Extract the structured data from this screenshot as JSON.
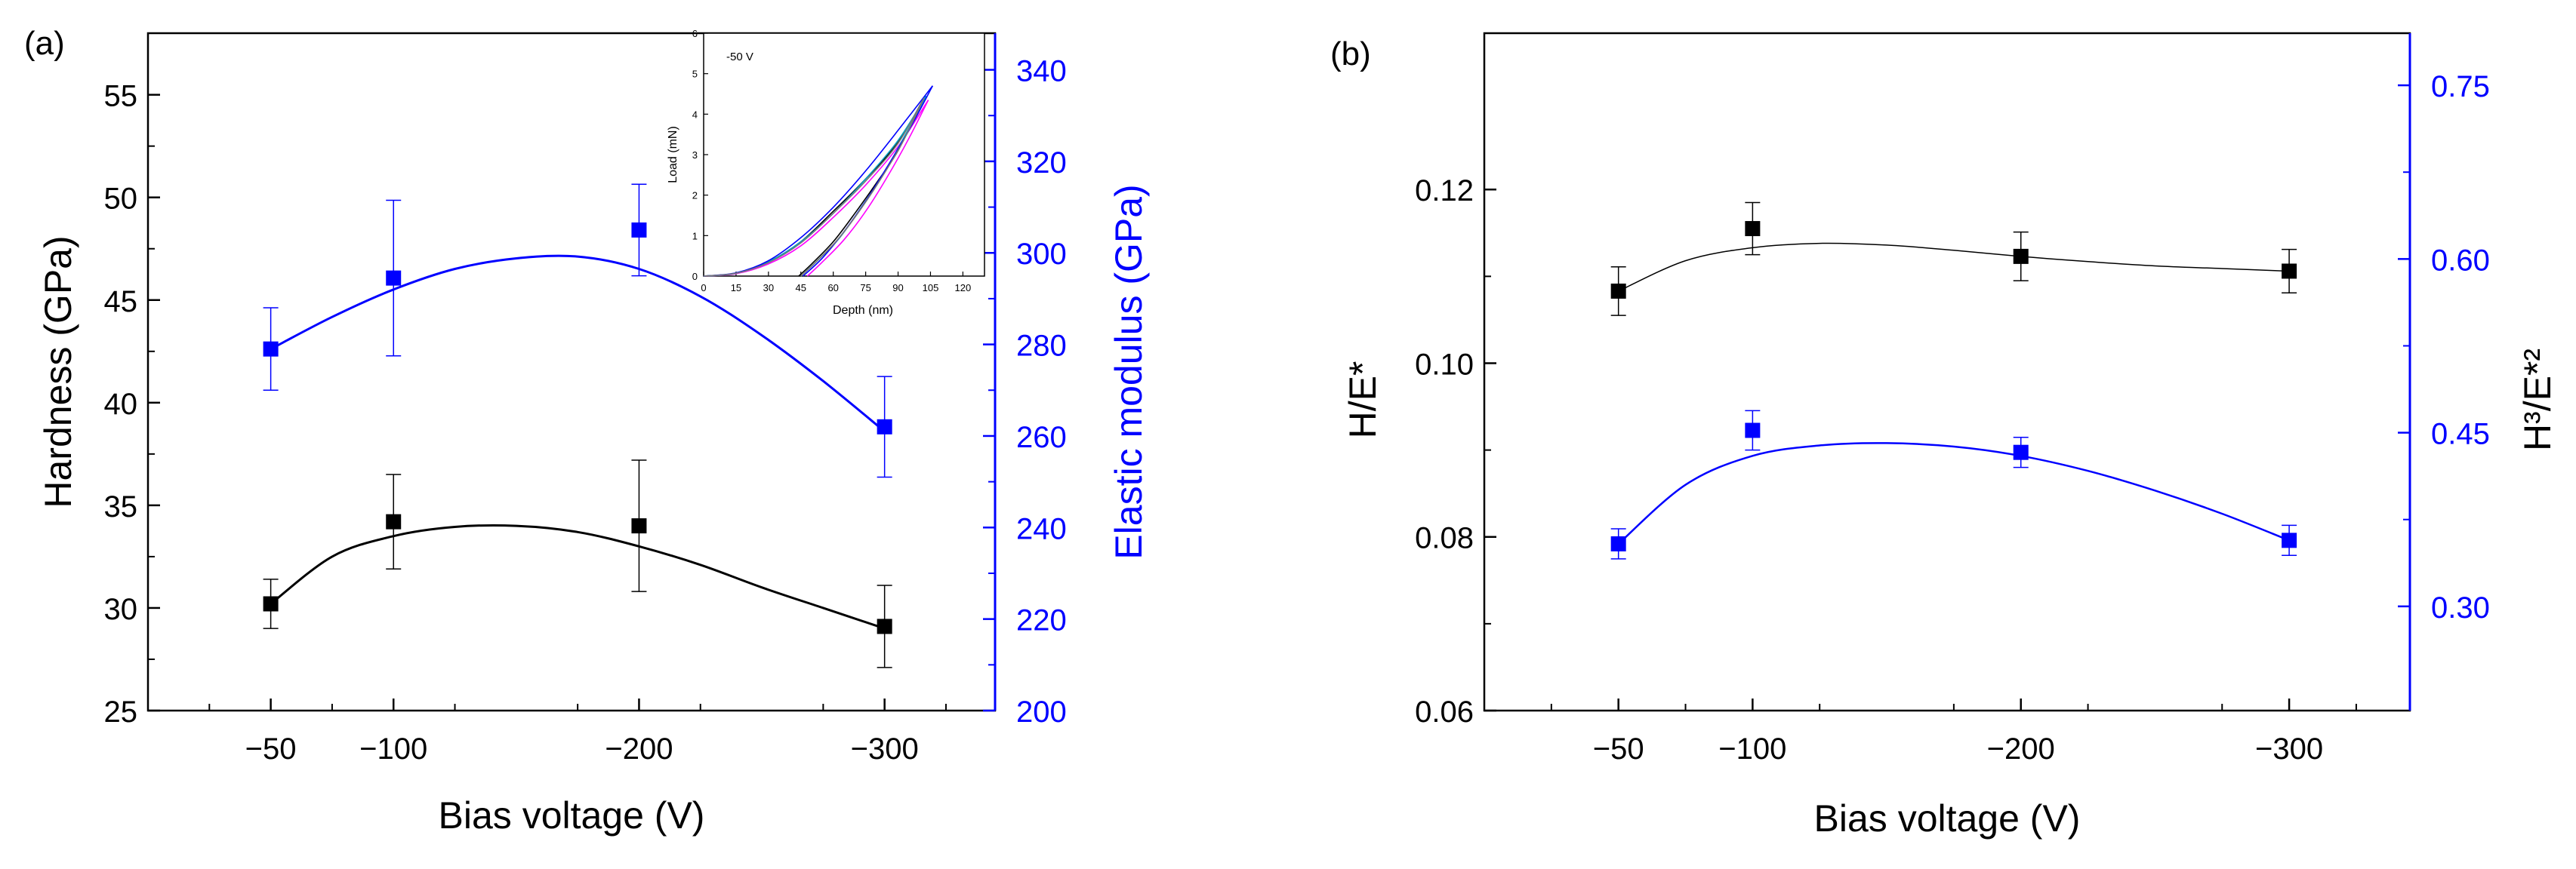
{
  "colors": {
    "black": "#000000",
    "blue": "#0000ff",
    "pink": "#ff00ff",
    "cyan": "#00a0c0",
    "gray": "#777777",
    "red": "#d00000"
  },
  "chart_data": [
    {
      "id": "a",
      "type": "scatter",
      "panel_label": "(a)",
      "xlabel": "Bias voltage (V)",
      "x_categories": [
        "−50",
        "−100",
        "−200",
        "−300"
      ],
      "x_values": [
        -50,
        -100,
        -200,
        -300
      ],
      "xlim": [
        0,
        -345
      ],
      "ylabel_left": "Hardness (GPa)",
      "ylim_left": [
        25,
        58
      ],
      "yticks_left": [
        25,
        30,
        35,
        40,
        45,
        50,
        55
      ],
      "ylabel_right": "Elastic modulus (GPa)",
      "ylim_right": [
        200,
        348
      ],
      "yticks_right": [
        200,
        220,
        240,
        260,
        280,
        300,
        320,
        340
      ],
      "series": [
        {
          "name": "Hardness",
          "axis": "left",
          "color": "#000000",
          "values": [
            30.2,
            34.2,
            34.0,
            29.1
          ],
          "errors": [
            1.2,
            2.3,
            3.2,
            2.0
          ],
          "fit": [
            [
              -50,
              30.2
            ],
            [
              -75,
              32.5
            ],
            [
              -100,
              33.5
            ],
            [
              -125,
              33.95
            ],
            [
              -150,
              34.0
            ],
            [
              -175,
              33.7
            ],
            [
              -200,
              33.0
            ],
            [
              -225,
              32.1
            ],
            [
              -250,
              31.0
            ],
            [
              -275,
              30.0
            ],
            [
              -300,
              29.0
            ]
          ]
        },
        {
          "name": "Elastic modulus",
          "axis": "right",
          "color": "#0000ff",
          "values": [
            279,
            294.5,
            305,
            262
          ],
          "errors": [
            9,
            17,
            10,
            11
          ],
          "fit": [
            [
              -50,
              279
            ],
            [
              -75,
              286
            ],
            [
              -100,
              292
            ],
            [
              -125,
              296.5
            ],
            [
              -150,
              298.8
            ],
            [
              -175,
              299.2
            ],
            [
              -200,
              296.5
            ],
            [
              -225,
              290.5
            ],
            [
              -250,
              282
            ],
            [
              -275,
              272
            ],
            [
              -300,
              261
            ]
          ]
        }
      ],
      "inset": {
        "annotation": "-50 V",
        "xlabel": "Depth (nm)",
        "ylabel": "Load (mN)",
        "xlim": [
          0,
          130
        ],
        "ylim": [
          0,
          6
        ],
        "xticks": [
          "0",
          "15",
          "30",
          "45",
          "60",
          "75",
          "90",
          "105",
          "120"
        ],
        "yticks": [
          "0",
          "1",
          "2",
          "3",
          "4",
          "5",
          "6"
        ],
        "curves": [
          {
            "name": "curve-black",
            "color": "#000000",
            "loading": [
              [
                0,
                0
              ],
              [
                15,
                0.07
              ],
              [
                30,
                0.35
              ],
              [
                45,
                0.85
              ],
              [
                60,
                1.6
              ],
              [
                75,
                2.4
              ],
              [
                90,
                3.3
              ],
              [
                101,
                4.3
              ]
            ],
            "unloading": [
              [
                101,
                4.3
              ],
              [
                90,
                3.1
              ],
              [
                80,
                2.3
              ],
              [
                70,
                1.55
              ],
              [
                60,
                0.85
              ],
              [
                50,
                0.3
              ],
              [
                44,
                0
              ]
            ]
          },
          {
            "name": "curve-pink",
            "color": "#ff00ff",
            "loading": [
              [
                0,
                0
              ],
              [
                15,
                0.06
              ],
              [
                30,
                0.3
              ],
              [
                45,
                0.75
              ],
              [
                60,
                1.45
              ],
              [
                75,
                2.25
              ],
              [
                90,
                3.2
              ],
              [
                104,
                4.35
              ]
            ],
            "unloading": [
              [
                104,
                4.35
              ],
              [
                95,
                3.4
              ],
              [
                85,
                2.45
              ],
              [
                75,
                1.6
              ],
              [
                65,
                0.9
              ],
              [
                55,
                0.35
              ],
              [
                48,
                0
              ]
            ]
          },
          {
            "name": "curve-cyan",
            "color": "#00a0c0",
            "loading": [
              [
                0,
                0
              ],
              [
                15,
                0.07
              ],
              [
                30,
                0.35
              ],
              [
                45,
                0.85
              ],
              [
                60,
                1.55
              ],
              [
                75,
                2.4
              ],
              [
                90,
                3.35
              ],
              [
                103,
                4.45
              ]
            ],
            "unloading": [
              [
                103,
                4.45
              ],
              [
                93,
                3.45
              ],
              [
                83,
                2.5
              ],
              [
                73,
                1.7
              ],
              [
                63,
                0.95
              ],
              [
                53,
                0.4
              ],
              [
                45,
                0
              ]
            ]
          },
          {
            "name": "curve-blue",
            "color": "#0000ff",
            "loading": [
              [
                0,
                0
              ],
              [
                15,
                0.08
              ],
              [
                30,
                0.38
              ],
              [
                45,
                0.95
              ],
              [
                60,
                1.7
              ],
              [
                75,
                2.6
              ],
              [
                90,
                3.6
              ],
              [
                106,
                4.7
              ]
            ],
            "unloading": [
              [
                106,
                4.7
              ],
              [
                95,
                3.6
              ],
              [
                85,
                2.7
              ],
              [
                75,
                1.85
              ],
              [
                65,
                1.1
              ],
              [
                55,
                0.45
              ],
              [
                46,
                0
              ]
            ]
          },
          {
            "name": "curve-gray",
            "color": "#777777",
            "loading": [
              [
                0,
                0
              ],
              [
                15,
                0.07
              ],
              [
                30,
                0.33
              ],
              [
                45,
                0.82
              ],
              [
                60,
                1.55
              ],
              [
                75,
                2.35
              ],
              [
                90,
                3.28
              ],
              [
                102,
                4.4
              ]
            ],
            "unloading": [
              [
                102,
                4.4
              ],
              [
                92,
                3.3
              ],
              [
                82,
                2.4
              ],
              [
                72,
                1.6
              ],
              [
                62,
                0.9
              ],
              [
                52,
                0.35
              ],
              [
                45,
                0
              ]
            ]
          }
        ]
      }
    },
    {
      "id": "b",
      "type": "scatter",
      "panel_label": "(b)",
      "xlabel": "Bias voltage (V)",
      "x_categories": [
        "−50",
        "−100",
        "−200",
        "−300"
      ],
      "x_values": [
        -50,
        -100,
        -200,
        -300
      ],
      "xlim": [
        0,
        -345
      ],
      "ylabel_left": "H/E*",
      "ylim_left": [
        0.06,
        0.138
      ],
      "yticks_left": [
        "0.06",
        "0.08",
        "0.10",
        "0.12"
      ],
      "ylabel_right": "H³/E*²",
      "ylim_right": [
        0.21,
        0.795
      ],
      "yticks_right": [
        "0.30",
        "0.45",
        "0.60",
        "0.75"
      ],
      "series": [
        {
          "name": "H/E*",
          "axis": "left",
          "color": "#000000",
          "values": [
            0.1083,
            0.1155,
            0.1123,
            0.1106
          ],
          "errors": [
            0.0028,
            0.003,
            0.0028,
            0.0025
          ],
          "fit": [
            [
              -50,
              0.1083
            ],
            [
              -75,
              0.1118
            ],
            [
              -100,
              0.1133
            ],
            [
              -125,
              0.1138
            ],
            [
              -150,
              0.1136
            ],
            [
              -175,
              0.113
            ],
            [
              -200,
              0.1123
            ],
            [
              -225,
              0.1117
            ],
            [
              -250,
              0.1112
            ],
            [
              -275,
              0.1109
            ],
            [
              -300,
              0.1106
            ]
          ]
        },
        {
          "name": "H³/E*²",
          "axis": "right",
          "color": "#0000ff",
          "values": [
            0.354,
            0.452,
            0.433,
            0.357
          ],
          "errors": [
            0.013,
            0.017,
            0.013,
            0.013
          ],
          "fit": [
            [
              -50,
              0.354
            ],
            [
              -75,
              0.405
            ],
            [
              -100,
              0.43
            ],
            [
              -125,
              0.439
            ],
            [
              -150,
              0.441
            ],
            [
              -175,
              0.438
            ],
            [
              -200,
              0.43
            ],
            [
              -225,
              0.417
            ],
            [
              -250,
              0.4
            ],
            [
              -275,
              0.38
            ],
            [
              -300,
              0.357
            ]
          ]
        }
      ]
    }
  ]
}
